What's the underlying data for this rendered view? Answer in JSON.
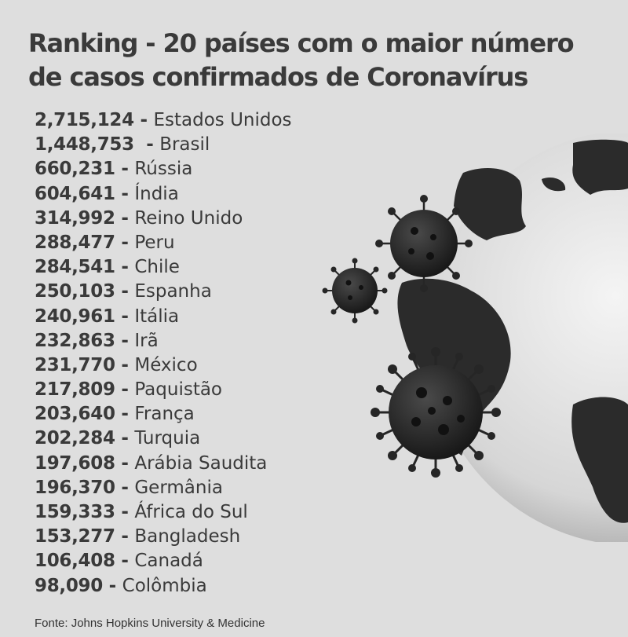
{
  "title": {
    "line1": "Ranking - 20 países com o maior número",
    "line2": "de casos confirmados de Coronavírus"
  },
  "ranking": [
    {
      "cases": "2,715,124",
      "sep": " - ",
      "country": "Estados Unidos"
    },
    {
      "cases": "1,448,753",
      "sep": "  - ",
      "country": "Brasil"
    },
    {
      "cases": "660,231",
      "sep": " - ",
      "country": "Rússia"
    },
    {
      "cases": "604,641",
      "sep": " - ",
      "country": "Índia"
    },
    {
      "cases": "314,992",
      "sep": " - ",
      "country": "Reino Unido"
    },
    {
      "cases": "288,477",
      "sep": " - ",
      "country": "Peru"
    },
    {
      "cases": "284,541",
      "sep": " - ",
      "country": "Chile"
    },
    {
      "cases": "250,103",
      "sep": " - ",
      "country": "Espanha"
    },
    {
      "cases": "240,961",
      "sep": " - ",
      "country": "Itália"
    },
    {
      "cases": "232,863",
      "sep": " - ",
      "country": "Irã"
    },
    {
      "cases": "231,770",
      "sep": " - ",
      "country": "México"
    },
    {
      "cases": "217,809",
      "sep": " - ",
      "country": "Paquistão"
    },
    {
      "cases": "203,640",
      "sep": " - ",
      "country": "França"
    },
    {
      "cases": "202,284",
      "sep": " - ",
      "country": "Turquia"
    },
    {
      "cases": "197,608",
      "sep": " - ",
      "country": "Arábia Saudita"
    },
    {
      "cases": "196,370",
      "sep": " - ",
      "country": "Germânia"
    },
    {
      "cases": "159,333",
      "sep": " - ",
      "country": "África do Sul"
    },
    {
      "cases": "153,277",
      "sep": " - ",
      "country": "Bangladesh"
    },
    {
      "cases": "106,408",
      "sep": " - ",
      "country": "Canadá"
    },
    {
      "cases": "98,090",
      "sep": " - ",
      "country": "Colômbia"
    }
  ],
  "source": "Fonte: Johns Hopkins University & Medicine",
  "illustration": {
    "globe_icon": "globe-icon",
    "virus_icon": "coronavirus-icon",
    "colors": {
      "background": "#dedede",
      "ocean": "#e9e9e9",
      "land": "#2b2b2b",
      "virus": "#262626"
    }
  }
}
